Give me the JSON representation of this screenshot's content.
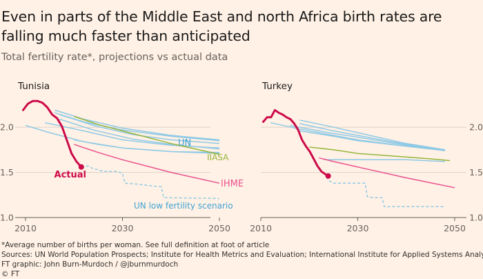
{
  "header": {
    "title": "Even in parts of the Middle East and north Africa birth rates are falling much faster than anticipated",
    "subtitle": "Total fertility rate*, projections vs actual data"
  },
  "footer": {
    "note": "*Average number of births per woman. See full definition at foot of article",
    "sources": "Sources: UN World Population Prospects; Institute for Health Metrics and Evaluation; International Institute for Applied Systems Analysis",
    "credit": "FT graphic: John Burn-Murdoch / @jburnmurdoch",
    "copyright": "© FT"
  },
  "colors": {
    "background": "#fff1e5",
    "actual": "#cc0a49",
    "un": "#8ec9e6",
    "un_label": "#3fa3d6",
    "iiasa": "#96b43b",
    "ihme": "#ea4f8c",
    "grid": "#ddd4cb",
    "axis": "#66605c"
  },
  "chart_data": [
    {
      "type": "line",
      "title": "Tunisia",
      "xlim": [
        2010,
        2050
      ],
      "ylim": [
        1.0,
        2.3
      ],
      "xticks": [
        "2010",
        "2030",
        "2050"
      ],
      "yticks": [
        "1.0",
        "1.5",
        "2.0"
      ],
      "labels": {
        "actual": "Actual",
        "un": "UN",
        "iiasa": "IIASA",
        "ihme": "IHME",
        "un_low": "UN low fertility scenario"
      },
      "actual": {
        "x": [
          2009.5,
          2010.5,
          2011.5,
          2012.5,
          2013.5,
          2014.5,
          2015.5,
          2016.5,
          2017.5,
          2018.5,
          2019.5,
          2020.5,
          2021.5
        ],
        "y": [
          2.19,
          2.26,
          2.29,
          2.29,
          2.27,
          2.22,
          2.14,
          2.1,
          2.01,
          1.86,
          1.71,
          1.62,
          1.56
        ]
      },
      "un_projections": [
        {
          "x": [
            2016,
            2022,
            2030,
            2040,
            2050
          ],
          "y": [
            2.19,
            2.09,
            1.99,
            1.91,
            1.86
          ]
        },
        {
          "x": [
            2016,
            2022,
            2030,
            2040,
            2050
          ],
          "y": [
            2.16,
            2.06,
            1.97,
            1.9,
            1.85
          ]
        },
        {
          "x": [
            2017,
            2024,
            2032,
            2040,
            2050
          ],
          "y": [
            2.14,
            2.02,
            1.92,
            1.86,
            1.82
          ]
        },
        {
          "x": [
            2017,
            2024,
            2032,
            2040,
            2050
          ],
          "y": [
            2.09,
            1.97,
            1.87,
            1.81,
            1.76
          ]
        },
        {
          "x": [
            2014,
            2022,
            2030,
            2040,
            2050
          ],
          "y": [
            2.05,
            1.96,
            1.86,
            1.8,
            1.77
          ]
        },
        {
          "x": [
            2010,
            2015,
            2022,
            2030,
            2040,
            2050
          ],
          "y": [
            2.02,
            1.94,
            1.84,
            1.77,
            1.73,
            1.72
          ]
        },
        {
          "x": [
            2020,
            2025,
            2030,
            2040,
            2050
          ],
          "y": [
            1.86,
            1.81,
            1.77,
            1.73,
            1.71
          ]
        }
      ],
      "un_low": {
        "x": [
          2021.5,
          2023,
          2024,
          2025,
          2026,
          2027,
          2028,
          2029,
          2030,
          2030.5,
          2033,
          2034.5,
          2038,
          2038.5,
          2050
        ],
        "y": [
          1.57,
          1.57,
          1.54,
          1.53,
          1.51,
          1.51,
          1.51,
          1.51,
          1.49,
          1.38,
          1.37,
          1.36,
          1.34,
          1.22,
          1.21
        ]
      },
      "iiasa": {
        "x": [
          2020,
          2025,
          2030,
          2040,
          2050
        ],
        "y": [
          2.12,
          2.03,
          1.96,
          1.82,
          1.7
        ]
      },
      "ihme": {
        "x": [
          2020,
          2025,
          2030,
          2040,
          2050
        ],
        "y": [
          1.81,
          1.72,
          1.64,
          1.5,
          1.38
        ]
      }
    },
    {
      "type": "line",
      "title": "Turkey",
      "xlim": [
        2010,
        2050
      ],
      "ylim": [
        1.0,
        2.3
      ],
      "xticks": [
        "2010",
        "2030",
        "2050"
      ],
      "yticks": [
        "1.0",
        "1.5",
        "2.0"
      ],
      "actual": {
        "x": [
          2010.5,
          2011.3,
          2012.1,
          2012.9,
          2013.7,
          2014.5,
          2015.3,
          2016.1,
          2016.9,
          2017.7,
          2018.5,
          2019.3,
          2020.1,
          2020.9,
          2021.7,
          2022.5,
          2023.3,
          2023.9
        ],
        "y": [
          2.06,
          2.11,
          2.11,
          2.19,
          2.16,
          2.14,
          2.11,
          2.09,
          2.04,
          1.97,
          1.86,
          1.79,
          1.73,
          1.65,
          1.57,
          1.51,
          1.48,
          1.46
        ]
      },
      "un_projections": [
        {
          "x": [
            2018,
            2025,
            2030,
            2040,
            2048
          ],
          "y": [
            2.08,
            2.0,
            1.94,
            1.82,
            1.75
          ]
        },
        {
          "x": [
            2018,
            2025,
            2030,
            2040,
            2048
          ],
          "y": [
            2.04,
            1.96,
            1.91,
            1.81,
            1.75
          ]
        },
        {
          "x": [
            2016,
            2024,
            2030,
            2040,
            2048
          ],
          "y": [
            2.02,
            1.94,
            1.89,
            1.8,
            1.75
          ]
        },
        {
          "x": [
            2012,
            2018,
            2025,
            2030,
            2040,
            2048
          ],
          "y": [
            2.05,
            1.98,
            1.91,
            1.86,
            1.79,
            1.74
          ]
        },
        {
          "x": [
            2018,
            2025,
            2030,
            2040,
            2048
          ],
          "y": [
            1.96,
            1.9,
            1.85,
            1.79,
            1.75
          ]
        },
        {
          "x": [
            2023,
            2030,
            2040,
            2048
          ],
          "y": [
            1.64,
            1.64,
            1.64,
            1.62
          ]
        }
      ],
      "un_low": {
        "x": [
          2023.5,
          2024,
          2025,
          2026,
          2027,
          2027.5,
          2028.5,
          2029.5,
          2031.5,
          2032,
          2033,
          2034,
          2035,
          2035.5,
          2040,
          2045,
          2048
        ],
        "y": [
          1.45,
          1.41,
          1.38,
          1.38,
          1.38,
          1.38,
          1.38,
          1.38,
          1.38,
          1.23,
          1.22,
          1.22,
          1.22,
          1.12,
          1.12,
          1.12,
          1.12
        ]
      },
      "iiasa": {
        "x": [
          2020,
          2025,
          2030,
          2035,
          2040,
          2045,
          2049
        ],
        "y": [
          1.78,
          1.75,
          1.71,
          1.69,
          1.67,
          1.65,
          1.63
        ]
      },
      "ihme": {
        "x": [
          2022,
          2025,
          2030,
          2040,
          2050
        ],
        "y": [
          1.66,
          1.62,
          1.56,
          1.44,
          1.33
        ]
      }
    }
  ]
}
